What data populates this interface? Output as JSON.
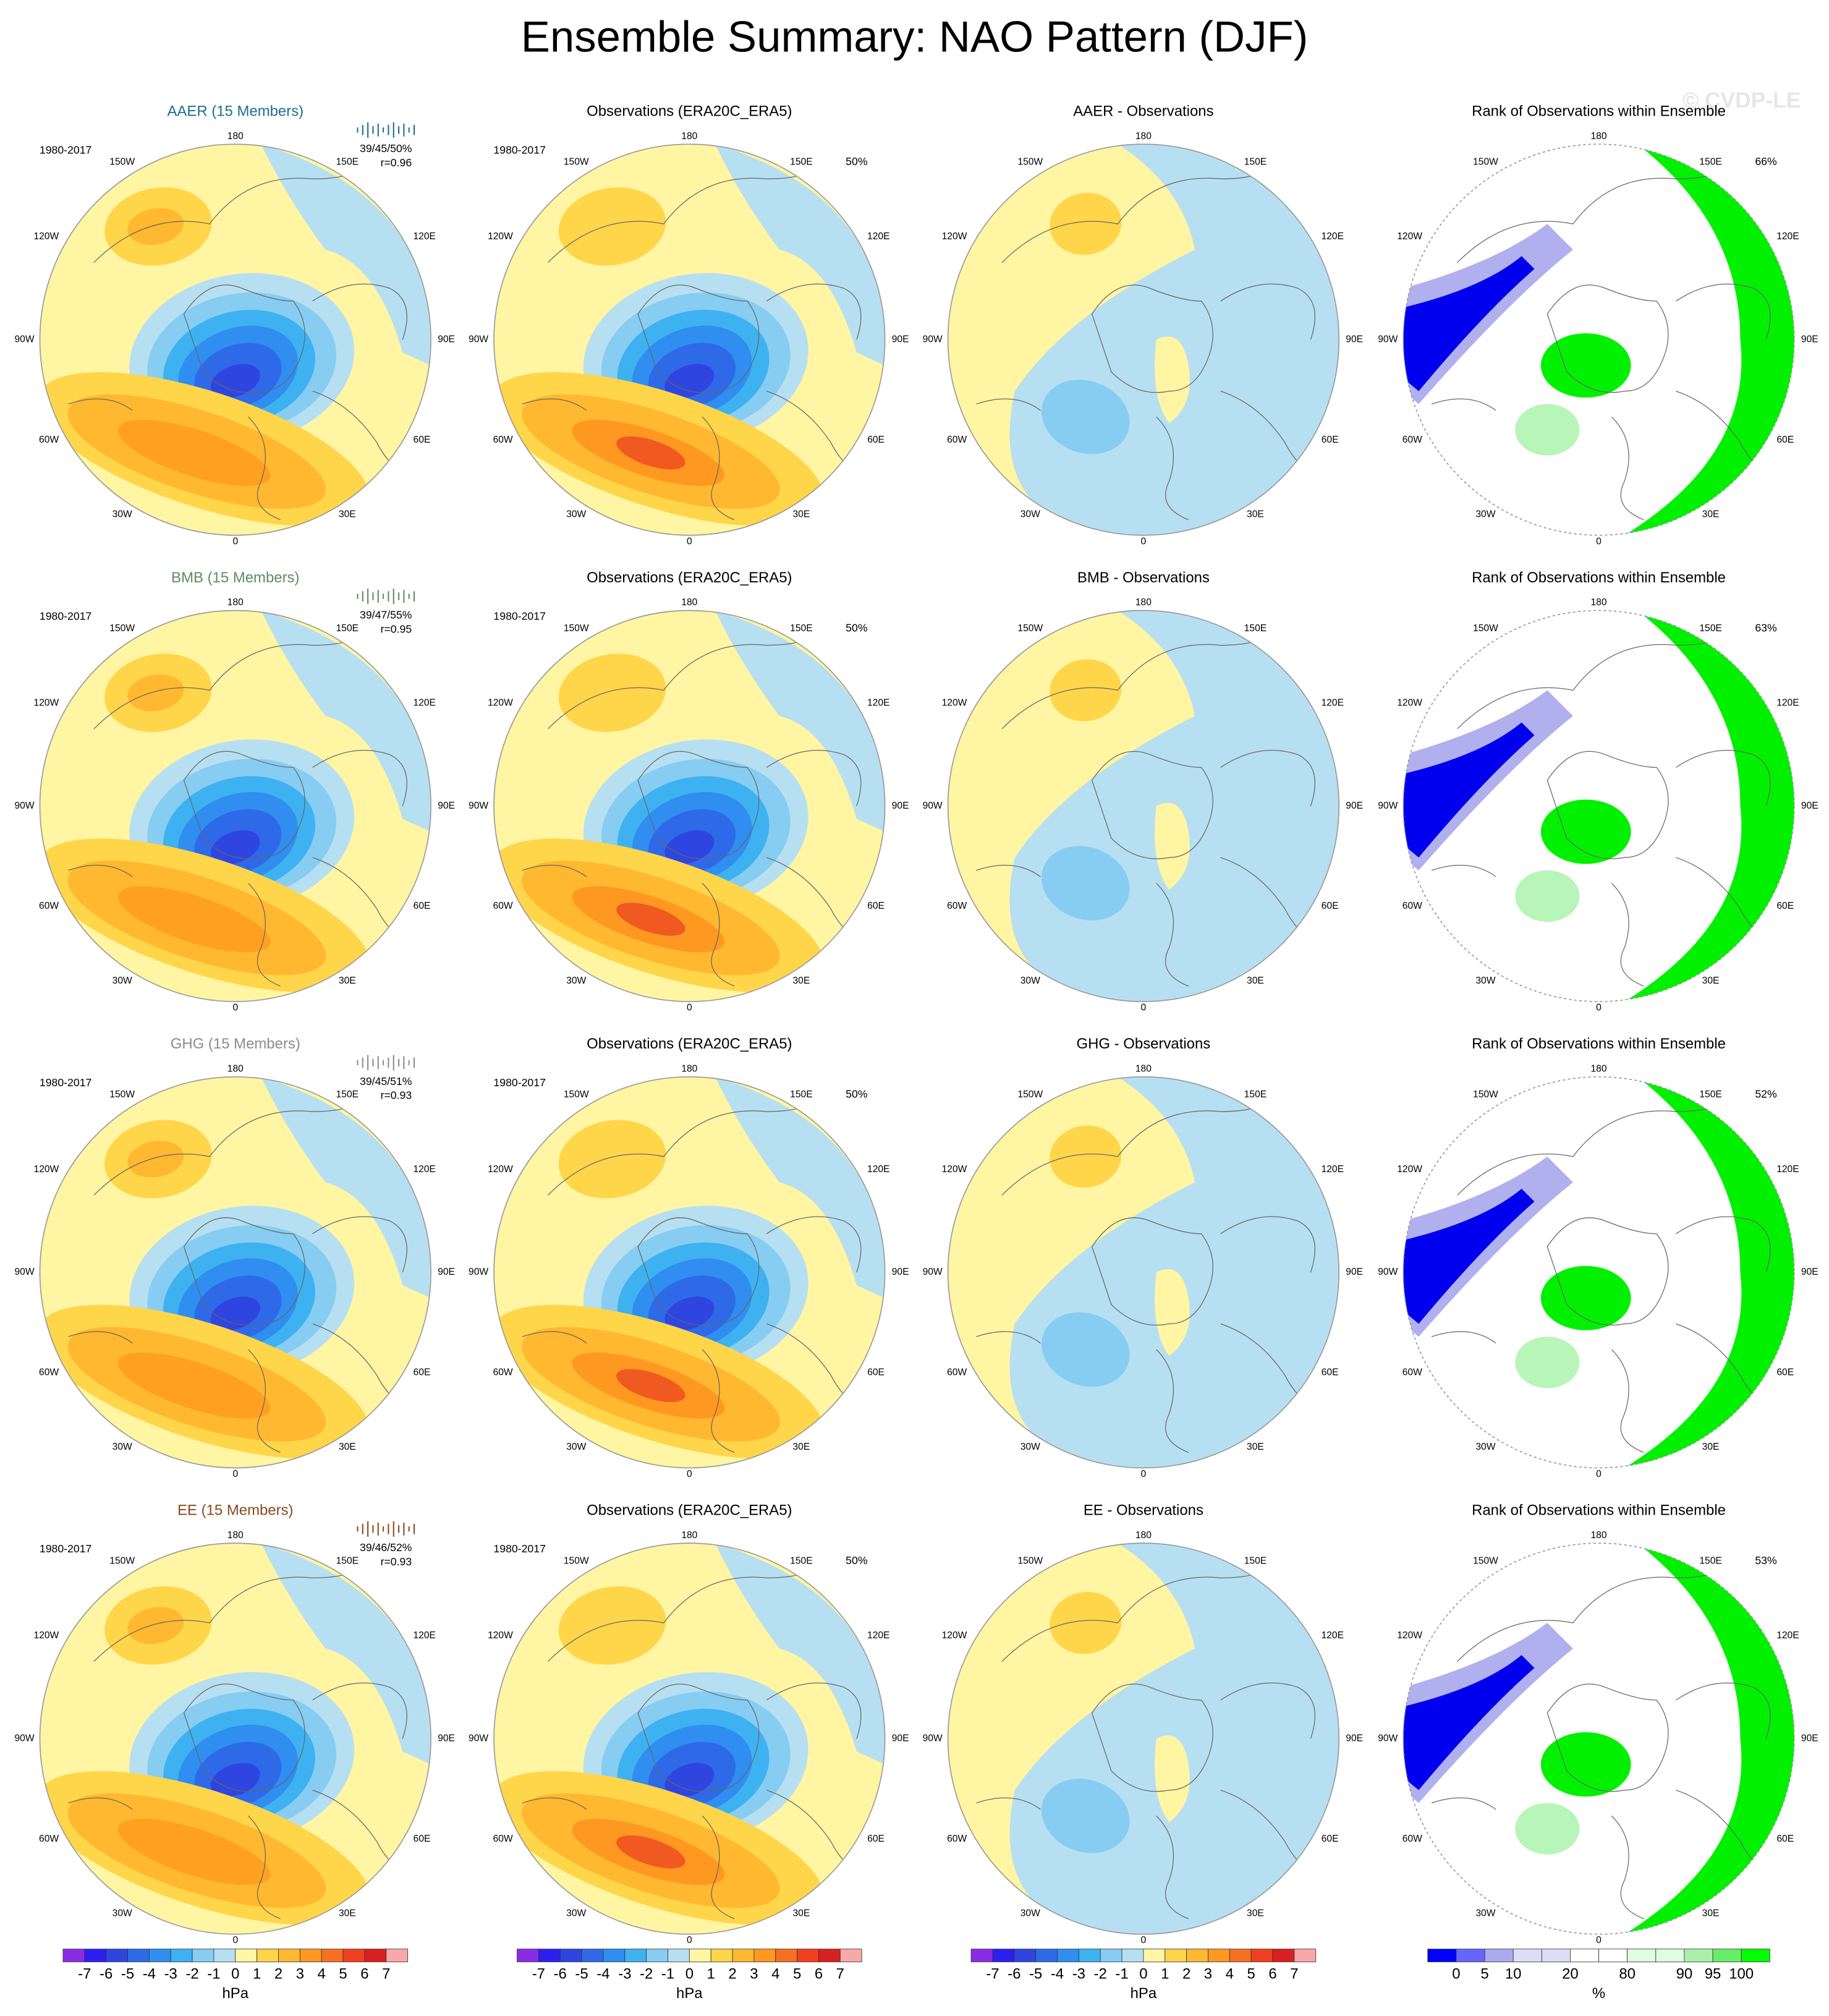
{
  "title": "Ensemble Summary: NAO Pattern (DJF)",
  "watermark": "© CVDP-LE",
  "lon_labels": [
    "180",
    "150E",
    "120E",
    "90E",
    "60E",
    "30E",
    "0",
    "30W",
    "60W",
    "90W",
    "120W",
    "150W"
  ],
  "rows": [
    {
      "panels": [
        {
          "title": "AAER (15 Members)",
          "period": "1980-2017",
          "stats": "39/45/50%",
          "corr": "r=0.96"
        },
        {
          "title": "Observations (ERA20C_ERA5)",
          "period": "1980-2017",
          "pct": "50%"
        },
        {
          "title": "AAER - Observations"
        },
        {
          "title": "Rank of Observations within Ensemble",
          "pct": "66%"
        }
      ]
    },
    {
      "panels": [
        {
          "title": "BMB (15 Members)",
          "period": "1980-2017",
          "stats": "39/47/55%",
          "corr": "r=0.95"
        },
        {
          "title": "Observations (ERA20C_ERA5)",
          "period": "1980-2017",
          "pct": "50%"
        },
        {
          "title": "BMB - Observations"
        },
        {
          "title": "Rank of Observations within Ensemble",
          "pct": "63%"
        }
      ]
    },
    {
      "panels": [
        {
          "title": "GHG (15 Members)",
          "period": "1980-2017",
          "stats": "39/45/51%",
          "corr": "r=0.93"
        },
        {
          "title": "Observations (ERA20C_ERA5)",
          "period": "1980-2017",
          "pct": "50%"
        },
        {
          "title": "GHG - Observations"
        },
        {
          "title": "Rank of Observations within Ensemble",
          "pct": "52%"
        }
      ]
    },
    {
      "panels": [
        {
          "title": "EE (15 Members)",
          "period": "1980-2017",
          "stats": "39/46/52%",
          "corr": "r=0.93"
        },
        {
          "title": "Observations (ERA20C_ERA5)",
          "period": "1980-2017",
          "pct": "50%"
        },
        {
          "title": "EE - Observations"
        },
        {
          "title": "Rank of Observations within Ensemble",
          "pct": "53%"
        }
      ]
    }
  ],
  "colorbars": [
    {
      "labels": [
        "-7",
        "-6",
        "-5",
        "-4",
        "-3",
        "-2",
        "-1",
        "0",
        "1",
        "2",
        "3",
        "4",
        "5",
        "6",
        "7"
      ],
      "unit": "hPa"
    },
    {
      "labels": [
        "-7",
        "-6",
        "-5",
        "-4",
        "-3",
        "-2",
        "-1",
        "0",
        "1",
        "2",
        "3",
        "4",
        "5",
        "6",
        "7"
      ],
      "unit": "hPa"
    },
    {
      "labels": [
        "-7",
        "-6",
        "-5",
        "-4",
        "-3",
        "-2",
        "-1",
        "0",
        "1",
        "2",
        "3",
        "4",
        "5",
        "6",
        "7"
      ],
      "unit": "hPa"
    },
    {
      "labels": [
        "0",
        "5",
        "10",
        "20",
        "80",
        "90",
        "95",
        "100"
      ],
      "unit": "%"
    }
  ]
}
